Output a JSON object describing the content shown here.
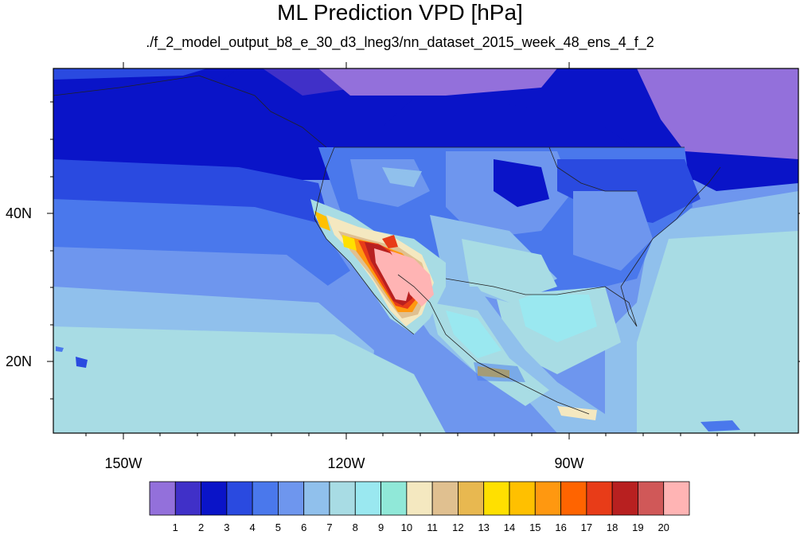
{
  "title": "ML Prediction VPD [hPa]",
  "subtitle": "./f_2_model_output_b8_e_30_d3_lneg3/nn_dataset_2015_week_48_ens_4_f_2",
  "axes": {
    "lon_labels": [
      "150W",
      "120W",
      "90W"
    ],
    "lat_labels": [
      "40N",
      "20N"
    ]
  },
  "colorbar": {
    "colors": [
      "#9370db",
      "#4030c8",
      "#0a14c8",
      "#2a4ae0",
      "#4a78ec",
      "#6e96ee",
      "#90c0ec",
      "#a8dce4",
      "#9ae8f0",
      "#90e8d8",
      "#f4e8c0",
      "#e0c090",
      "#e8b850",
      "#ffe000",
      "#ffc000",
      "#ff9810",
      "#ff6400",
      "#e83c18",
      "#b82020",
      "#d05858",
      "#ffb4b4"
    ],
    "labels": [
      "1",
      "2",
      "3",
      "4",
      "5",
      "6",
      "7",
      "8",
      "9",
      "10",
      "11",
      "12",
      "13",
      "14",
      "15",
      "16",
      "17",
      "18",
      "19",
      "20"
    ]
  }
}
